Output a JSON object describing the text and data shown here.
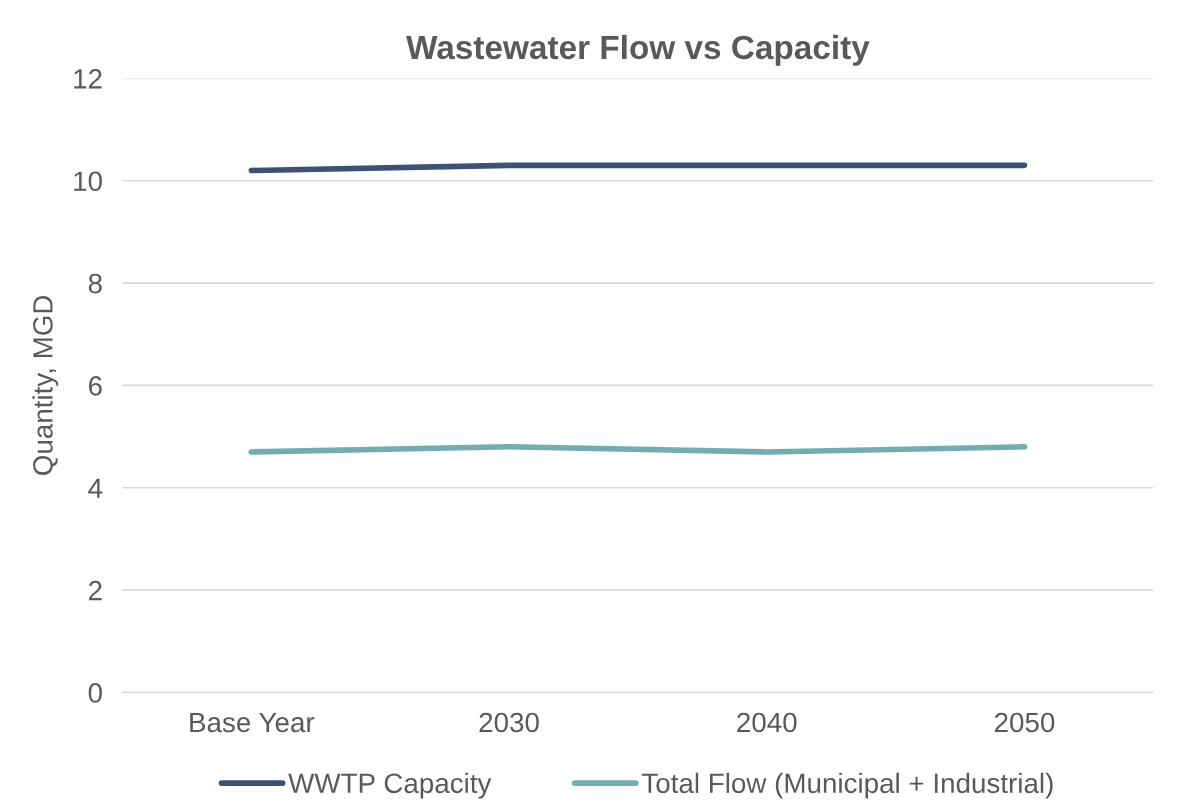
{
  "chart_data": {
    "type": "line",
    "title": "Wastewater Flow vs Capacity",
    "ylabel": "Quantity, MGD",
    "categories": [
      "Base Year",
      "2030",
      "2040",
      "2050"
    ],
    "series": [
      {
        "name": "WWTP Capacity",
        "color": "#3b5272",
        "values": [
          10.2,
          10.3,
          10.3,
          10.3
        ]
      },
      {
        "name": "Total Flow (Municipal + Industrial)",
        "color": "#74acb0",
        "values": [
          4.7,
          4.8,
          4.7,
          4.8
        ]
      }
    ],
    "ylim": [
      0,
      12
    ],
    "yticks": [
      0,
      2,
      4,
      6,
      8,
      10,
      12
    ],
    "grid": "y",
    "legend": "bottom",
    "marker": "none",
    "line_style": "solid"
  }
}
